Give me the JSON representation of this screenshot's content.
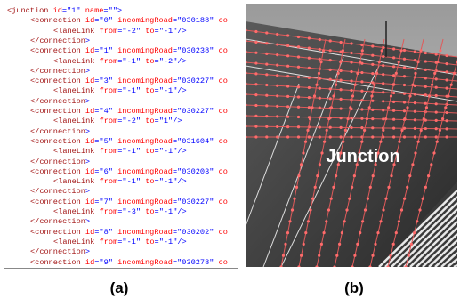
{
  "code_panel": {
    "lines": [
      "<junction id=\"1\" name=\"\">",
      "<connection id=\"0\" incomingRoad=\"030188\" co",
      "<laneLink from=\"-2\" to=\"-1\"/>",
      "</connection>",
      "<connection id=\"1\" incomingRoad=\"030238\" co",
      "<laneLink from=\"-1\" to=\"-2\"/>",
      "</connection>",
      "<connection id=\"3\" incomingRoad=\"030227\" co",
      "<laneLink from=\"-1\" to=\"-1\"/>",
      "</connection>",
      "<connection id=\"4\" incomingRoad=\"030227\" co",
      "<laneLink from=\"-2\" to=\"1\"/>",
      "</connection>",
      "<connection id=\"5\" incomingRoad=\"031604\" co",
      "<laneLink from=\"-1\" to=\"-1\"/>",
      "</connection>",
      "<connection id=\"6\" incomingRoad=\"030203\" co",
      "<laneLink from=\"-1\" to=\"-1\"/>",
      "</connection>",
      "<connection id=\"7\" incomingRoad=\"030227\" co",
      "<laneLink from=\"-3\" to=\"-1\"/>",
      "</connection>",
      "<connection id=\"8\" incomingRoad=\"030202\" co",
      "<laneLink from=\"-1\" to=\"-1\"/>",
      "</connection>",
      "<connection id=\"9\" incomingRoad=\"030278\" co"
    ],
    "caption": "(a)"
  },
  "render_panel": {
    "label": "Junction",
    "caption": "(b)"
  }
}
